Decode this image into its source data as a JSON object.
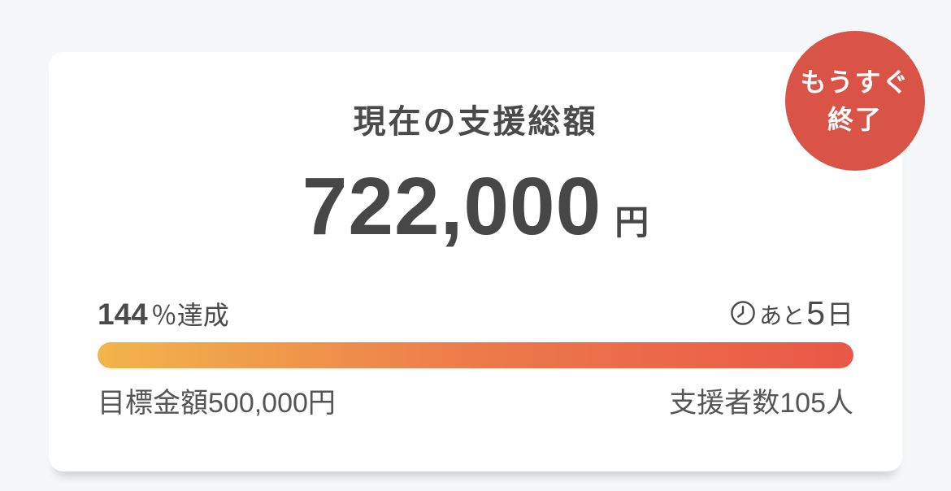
{
  "page": {
    "background": "#F5F7F9"
  },
  "card": {
    "title": "現在の支援総額",
    "amount": {
      "value": "722,000",
      "unit": "円"
    },
    "achievement": {
      "value": "144",
      "suffix": "％達成"
    },
    "days_left": {
      "prefix": "あと",
      "value": "5",
      "suffix": "日",
      "icon": "clock-icon"
    },
    "progress": {
      "percent": 144,
      "gradient": [
        "#F2B54B",
        "#ED7A4B",
        "#EA5747"
      ]
    },
    "goal": {
      "label": "目標金額",
      "value": "500,000",
      "unit": "円"
    },
    "supporters": {
      "label": "支援者数",
      "value": "105",
      "unit": "人"
    },
    "badge": {
      "line1": "もうすぐ",
      "line2": "終了",
      "color": "#DA5347",
      "text_color": "#FFFFFF"
    }
  }
}
